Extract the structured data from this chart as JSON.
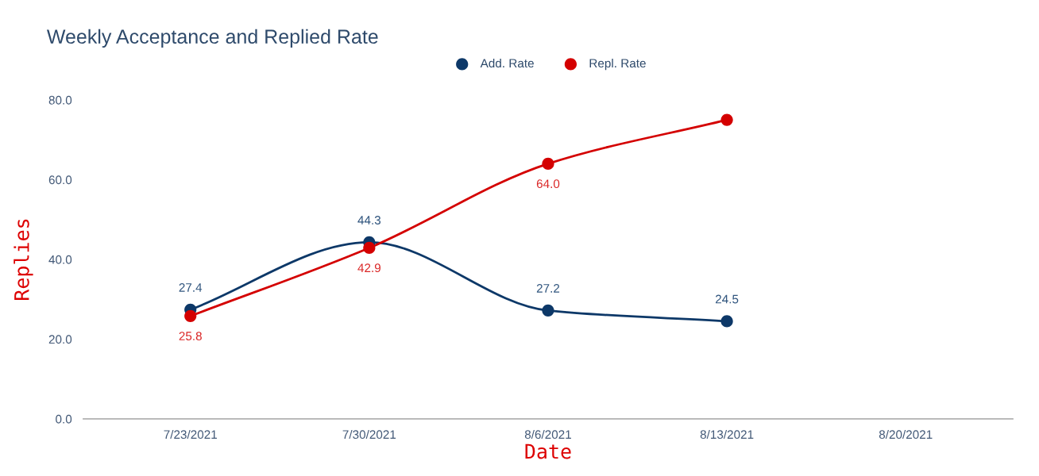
{
  "chart_data": {
    "type": "line",
    "title": "Weekly Acceptance and Replied Rate",
    "xlabel": "Date",
    "ylabel": "Replies",
    "categories": [
      "7/23/2021",
      "7/30/2021",
      "8/6/2021",
      "8/13/2021",
      "8/20/2021"
    ],
    "series": [
      {
        "name": "Add. Rate",
        "color": "#0d3868",
        "values": [
          27.4,
          44.3,
          27.2,
          24.5,
          null
        ],
        "value_labels": [
          "27.4",
          "44.3",
          "27.2",
          "24.5",
          null
        ]
      },
      {
        "name": "Repl. Rate",
        "color": "#d40000",
        "values": [
          25.8,
          42.9,
          64.0,
          75.0,
          null
        ],
        "value_labels": [
          "25.8",
          "42.9",
          "64.0",
          null,
          null
        ]
      }
    ],
    "ylim": [
      0,
      80
    ],
    "yticks": [
      {
        "value": 0,
        "label": "0.0"
      },
      {
        "value": 20,
        "label": "20.0"
      },
      {
        "value": 40,
        "label": "40.0"
      },
      {
        "value": 60,
        "label": "60.0"
      },
      {
        "value": 80,
        "label": "80.0"
      }
    ],
    "grid": false,
    "legend": "top",
    "marker": "circle",
    "line_style": "solid"
  }
}
